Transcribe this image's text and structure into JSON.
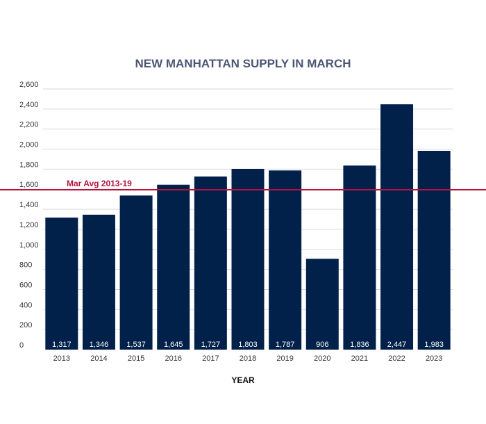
{
  "chart_data": {
    "type": "bar",
    "title": "NEW MANHATTAN SUPPLY IN MARCH",
    "xlabel": "YEAR",
    "ylabel": "",
    "ylim": [
      0,
      2600
    ],
    "yticks": [
      0,
      200,
      400,
      600,
      800,
      1000,
      1200,
      1400,
      1600,
      1800,
      2000,
      2200,
      2400,
      2600
    ],
    "ytick_labels": [
      "0",
      "200",
      "400",
      "600",
      "800",
      "1,000",
      "1,200",
      "1,400",
      "1,600",
      "1,800",
      "2,000",
      "2,200",
      "2,400",
      "2,600"
    ],
    "grid": true,
    "categories": [
      "2013",
      "2014",
      "2015",
      "2016",
      "2017",
      "2018",
      "2019",
      "2020",
      "2021",
      "2022",
      "2023"
    ],
    "values": [
      1317,
      1346,
      1537,
      1645,
      1727,
      1803,
      1787,
      906,
      1836,
      2447,
      1983
    ],
    "data_labels": [
      "1,317",
      "1,346",
      "1,537",
      "1,645",
      "1,727",
      "1,803",
      "1,787",
      "906",
      "1,836",
      "2,447",
      "1,983"
    ],
    "bar_color": "#01214a",
    "reference_line": {
      "label": "Mar Avg 2013-19",
      "value": 1595,
      "color": "#b5143c"
    }
  }
}
